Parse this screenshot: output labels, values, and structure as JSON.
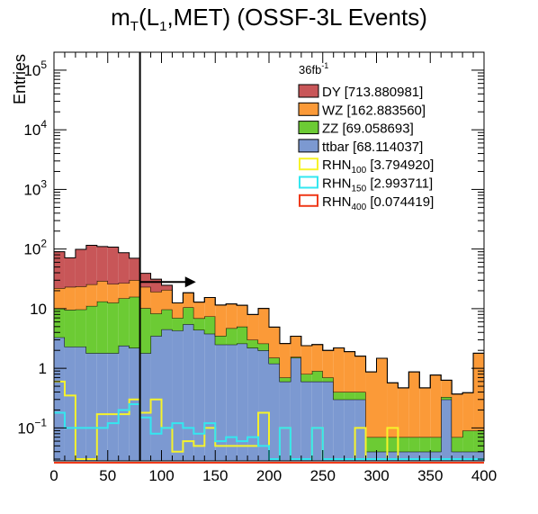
{
  "title": {
    "main": "m",
    "sub1": "T",
    "mid": "(L",
    "sub2": "1",
    "rest": ",MET) (OSSF-3L Events)"
  },
  "chart_data": {
    "type": "stacked-histogram",
    "title": "m_T(L_1,MET) (OSSF-3L Events)",
    "xlabel": "",
    "ylabel": "Entries",
    "xlim": [
      0,
      400
    ],
    "ylim": [
      0.028,
      200000
    ],
    "yscale": "log",
    "bin_width": 10,
    "x_ticks": [
      "0",
      "50",
      "100",
      "150",
      "200",
      "250",
      "300",
      "350",
      "400"
    ],
    "y_ticks": [
      {
        "value": 0.1,
        "base": "10",
        "exp": "−1"
      },
      {
        "value": 1,
        "base": "1",
        "exp": ""
      },
      {
        "value": 10,
        "base": "10",
        "exp": ""
      },
      {
        "value": 100,
        "base": "10",
        "exp": "2"
      },
      {
        "value": 1000,
        "base": "10",
        "exp": "3"
      },
      {
        "value": 10000,
        "base": "10",
        "exp": "4"
      },
      {
        "value": 100000,
        "base": "10",
        "exp": "5"
      }
    ],
    "luminosity": {
      "base": "36fb",
      "exp": "-1"
    },
    "cut_line": {
      "x": 80,
      "arrow_to": 132,
      "arrow_level": 28
    },
    "stack": [
      {
        "name": "ttbar",
        "legend": "ttbar [68.114037]",
        "color": "#7c99d1",
        "values": [
          3.3,
          2.3,
          2.3,
          1.8,
          1.8,
          1.8,
          2.4,
          2.2,
          1.8,
          3.5,
          4.5,
          4.3,
          5.5,
          4.4,
          3.8,
          2.5,
          2.5,
          2.6,
          2.2,
          2.0,
          1.2,
          0.6,
          1.5,
          0.6,
          0.6,
          0.6,
          0.3,
          0.3,
          0.3,
          0.04,
          0.04,
          0.04,
          0.04,
          0.04,
          0.04,
          0.04,
          0.3,
          0.04,
          0.04,
          0.04
        ]
      },
      {
        "name": "ZZ",
        "legend": "ZZ [69.058693]",
        "color": "#6ccb34",
        "values": [
          6.8,
          7.3,
          7.4,
          9.3,
          11.4,
          10.8,
          12.5,
          13.6,
          8.4,
          4.8,
          5.2,
          2.7,
          5.0,
          2.5,
          3.6,
          1.0,
          2.2,
          2.4,
          0.8,
          0.6,
          0.3,
          0.1,
          0.05,
          0.2,
          0.3,
          0.1,
          0.1,
          0.1,
          0.1,
          0.03,
          0.03,
          0.03,
          0.03,
          0.03,
          0.03,
          0.03,
          0.03,
          0.03,
          0.05,
          0.05
        ]
      },
      {
        "name": "WZ",
        "legend": "WZ [162.883560]",
        "color": "#fb9a38",
        "values": [
          12,
          13.6,
          14,
          14.5,
          16,
          13.4,
          12,
          14.4,
          13,
          11,
          11,
          5.5,
          8,
          6,
          8,
          8,
          7.3,
          6.4,
          5,
          7.5,
          3.4,
          1.9,
          1.9,
          1.6,
          1.6,
          1.3,
          1.8,
          1.5,
          1.2,
          0.8,
          1.4,
          0.5,
          0.4,
          0.8,
          0.4,
          0.7,
          0.3,
          0.3,
          0.3,
          1.7
        ]
      },
      {
        "name": "DY",
        "legend": "DY [713.880981]",
        "color": "#c85658",
        "values": [
          68,
          48,
          75,
          90,
          81,
          82,
          60,
          40,
          16,
          12,
          4,
          0,
          0,
          0,
          0,
          0,
          0,
          0,
          0,
          0,
          0,
          0,
          0,
          0,
          0,
          0,
          0,
          0,
          0,
          0,
          0,
          0,
          0,
          0,
          0,
          0,
          0,
          0,
          0,
          0
        ]
      }
    ],
    "signals": [
      {
        "name": "RHN100",
        "legend_main": "RHN",
        "legend_sub": "100",
        "legend_val": " [3.794920]",
        "color": "#f6f32a",
        "values": [
          0.6,
          0.35,
          0.03,
          0.03,
          0.17,
          0.17,
          0.17,
          0.3,
          0.18,
          0.3,
          0.1,
          0.04,
          0.06,
          0.05,
          0.1,
          0.05,
          0.05,
          0.05,
          0.05,
          0.18,
          0.03,
          0.1,
          0.03,
          0.03,
          0.1,
          0.03,
          0.03,
          0.03,
          0.1,
          0.03,
          0.03,
          0.1,
          0.03,
          0.03,
          0.03,
          0.03,
          0.03,
          0.03,
          0.03,
          0.03
        ]
      },
      {
        "name": "RHN150",
        "legend_main": "RHN",
        "legend_sub": "150",
        "legend_val": " [2.993711]",
        "color": "#34e7f0",
        "values": [
          0.18,
          0.1,
          0.1,
          0.1,
          0.1,
          0.12,
          0.2,
          0.25,
          0.15,
          0.08,
          0.1,
          0.12,
          0.1,
          0.08,
          0.12,
          0.06,
          0.07,
          0.06,
          0.07,
          0.05,
          0.03,
          0.1,
          0.03,
          0.03,
          0.1,
          0.03,
          0.03,
          0.03,
          0.03,
          0.03,
          0.03,
          0.03,
          0.03,
          0.03,
          0.03,
          0.03,
          0.03,
          0.03,
          0.03,
          0.03
        ]
      },
      {
        "name": "RHN400",
        "legend_main": "RHN",
        "legend_sub": "400",
        "legend_val": " [0.074419]",
        "color": "#ef3a1a",
        "values": [
          0,
          0,
          0,
          0,
          0,
          0,
          0,
          0,
          0,
          0,
          0,
          0,
          0,
          0,
          0,
          0,
          0,
          0,
          0,
          0,
          0,
          0,
          0,
          0,
          0,
          0,
          0,
          0,
          0,
          0,
          0,
          0,
          0,
          0,
          0,
          0,
          0,
          0,
          0,
          0
        ]
      }
    ]
  }
}
